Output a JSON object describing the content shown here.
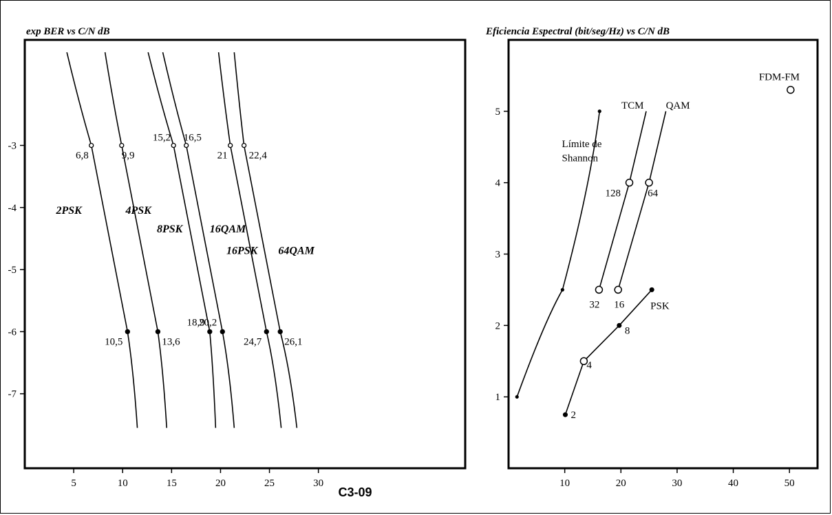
{
  "figure_label": "C3-09",
  "chart_data": [
    {
      "type": "line",
      "title": "exp BER vs C/N dB",
      "xlim": [
        0,
        45
      ],
      "ylim": [
        -8.2,
        -1.3
      ],
      "x_ticks": [
        5,
        10,
        15,
        20,
        25,
        30
      ],
      "y_ticks": [
        -3,
        -4,
        -5,
        -6,
        -7
      ],
      "y_tick_labels": [
        "-3",
        "-4",
        "-5",
        "-6",
        "-7"
      ],
      "series": [
        {
          "name": "2PSK",
          "label_pos": {
            "x": 3.2,
            "y": -4.1
          },
          "x_at_top": 4.3,
          "x_at_minus3": 6.8,
          "x_at_minus6": 10.5,
          "x_at_bottom": 11.5
        },
        {
          "name": "4PSK",
          "label_pos": {
            "x": 10.3,
            "y": -4.1
          },
          "x_at_top": 8.2,
          "x_at_minus3": 9.9,
          "x_at_minus6": 13.6,
          "x_at_bottom": 14.5
        },
        {
          "name": "8PSK",
          "label_pos": {
            "x": 13.5,
            "y": -4.4
          },
          "x_at_top": 12.6,
          "x_at_minus3": 15.2,
          "x_at_minus6": 18.9,
          "x_at_bottom": 19.5
        },
        {
          "name": "16QAM",
          "label_pos": {
            "x": 18.9,
            "y": -4.4
          },
          "x_at_top": 14.1,
          "x_at_minus3": 16.5,
          "x_at_minus6": 20.2,
          "x_at_bottom": 21.4
        },
        {
          "name": "16PSK",
          "label_pos": {
            "x": 20.6,
            "y": -4.75
          },
          "x_at_top": 19.8,
          "x_at_minus3": 21.0,
          "x_at_minus6": 24.7,
          "x_at_bottom": 26.2
        },
        {
          "name": "64QAM",
          "label_pos": {
            "x": 25.9,
            "y": -4.75
          },
          "x_at_top": 21.4,
          "x_at_minus3": 22.4,
          "x_at_minus6": 26.1,
          "x_at_bottom": 27.8
        }
      ],
      "point_labels_minus3": [
        "6,8",
        "9,9",
        "15,2",
        "16,5",
        "21",
        "22,4"
      ],
      "point_labels_minus6": [
        "10,5",
        "13,6",
        "18,9",
        "20,2",
        "24,7",
        "26,1"
      ],
      "curve_top_y": -1.5,
      "curve_bottom_y": -7.55
    },
    {
      "type": "line",
      "title": "Eficiencia Espectral (bit/seg/Hz) vs C/N dB",
      "xlim": [
        0,
        55
      ],
      "ylim": [
        0,
        6
      ],
      "x_ticks": [
        10,
        20,
        30,
        40,
        50
      ],
      "y_ticks": [
        1,
        2,
        3,
        4,
        5
      ],
      "series": [
        {
          "name": "Límite de Shannon",
          "points": [
            [
              1.5,
              1.0
            ],
            [
              9.6,
              2.5
            ],
            [
              16.2,
              5.0
            ]
          ]
        },
        {
          "name": "TCM",
          "points": [
            [
              16.1,
              2.5
            ],
            [
              21.5,
              4.0
            ],
            [
              24.5,
              5.0
            ]
          ],
          "point_labels": [
            "32",
            "128",
            ""
          ]
        },
        {
          "name": "QAM",
          "points": [
            [
              19.5,
              2.5
            ],
            [
              25.0,
              4.0
            ],
            [
              28.0,
              5.0
            ]
          ],
          "point_labels": [
            "16",
            "64",
            ""
          ]
        },
        {
          "name": "PSK",
          "points": [
            [
              10.1,
              0.75
            ],
            [
              13.4,
              1.5
            ],
            [
              19.7,
              2.0
            ],
            [
              25.5,
              2.5
            ]
          ],
          "point_labels": [
            "2",
            "4",
            "8",
            ""
          ]
        },
        {
          "name": "FDM-FM",
          "points": [
            [
              50.2,
              5.3
            ]
          ]
        }
      ],
      "series_label_text": {
        "shannon_line1": "Límite de",
        "shannon_line2": "Shannon"
      }
    }
  ]
}
